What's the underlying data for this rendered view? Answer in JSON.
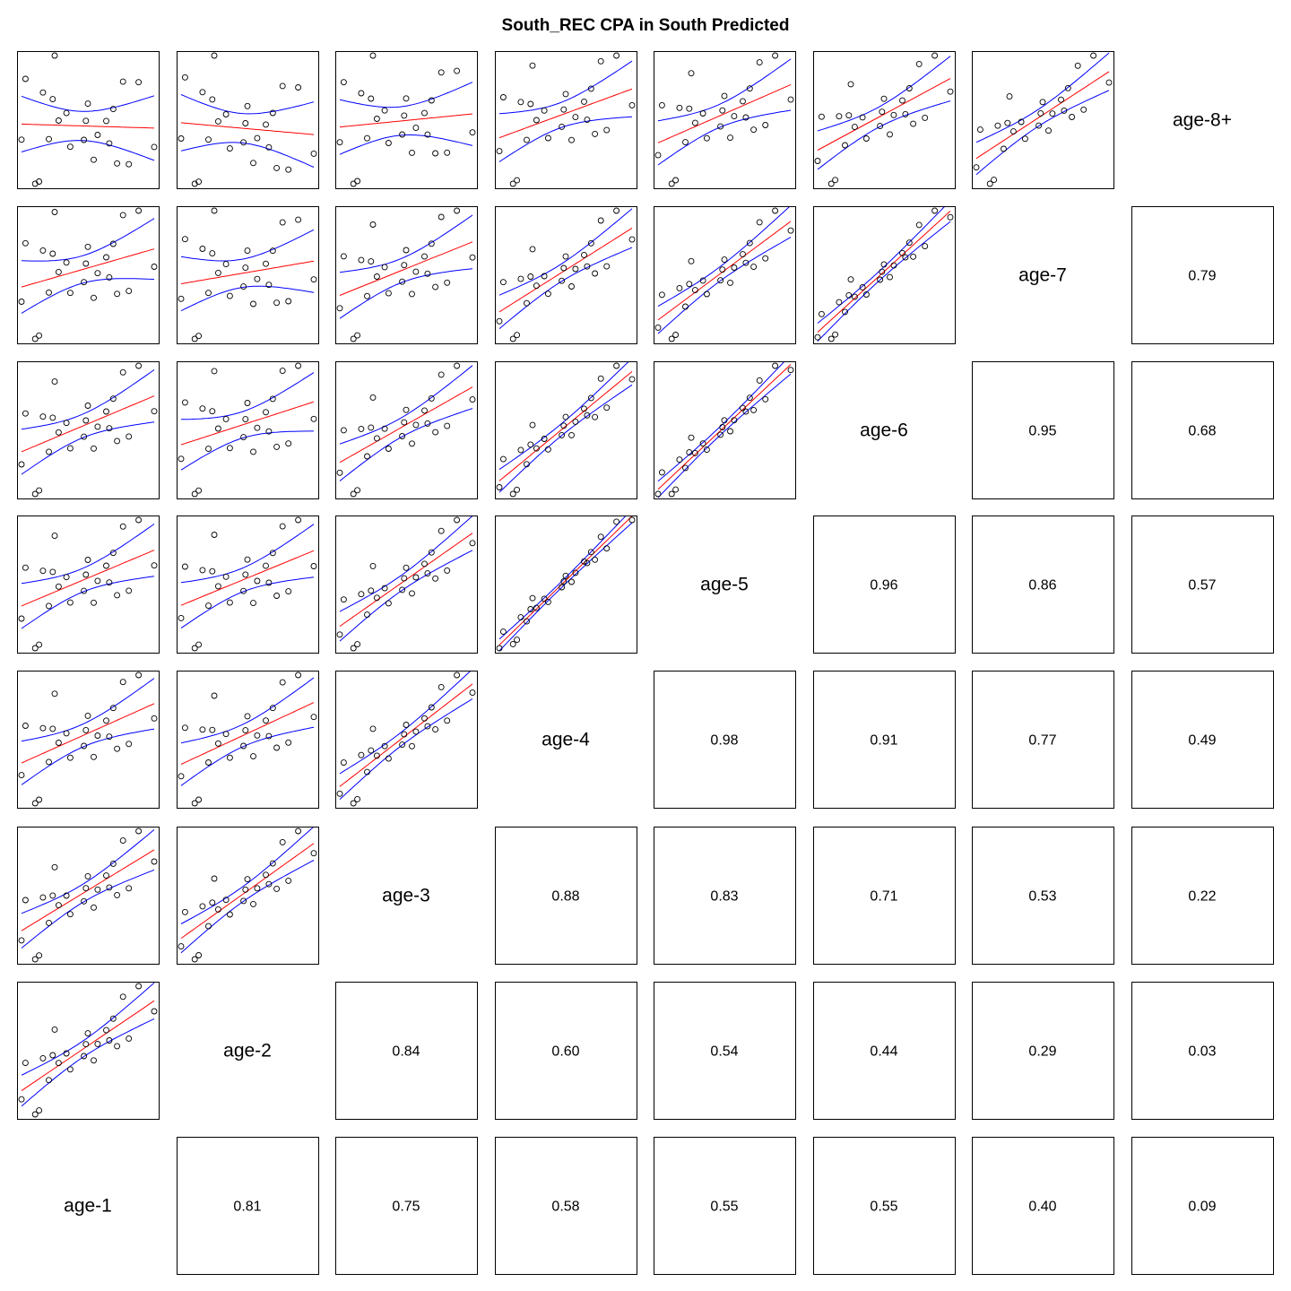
{
  "chart_data": {
    "type": "scatter",
    "title": "South_REC CPA in South Predicted",
    "layout": "pairs-matrix",
    "variables": [
      "age-1",
      "age-2",
      "age-3",
      "age-4",
      "age-5",
      "age-6",
      "age-7",
      "age-8+"
    ],
    "colors": {
      "points": "#000000",
      "fit": "#ff0000",
      "ci": "#0000ff",
      "frame": "#000000"
    },
    "correlations": [
      {
        "row": "age-1",
        "col": "age-2",
        "value": "0.81"
      },
      {
        "row": "age-1",
        "col": "age-3",
        "value": "0.75"
      },
      {
        "row": "age-1",
        "col": "age-4",
        "value": "0.58"
      },
      {
        "row": "age-1",
        "col": "age-5",
        "value": "0.55"
      },
      {
        "row": "age-1",
        "col": "age-6",
        "value": "0.55"
      },
      {
        "row": "age-1",
        "col": "age-7",
        "value": "0.40"
      },
      {
        "row": "age-1",
        "col": "age-8+",
        "value": "0.09"
      },
      {
        "row": "age-2",
        "col": "age-3",
        "value": "0.84"
      },
      {
        "row": "age-2",
        "col": "age-4",
        "value": "0.60"
      },
      {
        "row": "age-2",
        "col": "age-5",
        "value": "0.54"
      },
      {
        "row": "age-2",
        "col": "age-6",
        "value": "0.44"
      },
      {
        "row": "age-2",
        "col": "age-7",
        "value": "0.29"
      },
      {
        "row": "age-2",
        "col": "age-8+",
        "value": "0.03"
      },
      {
        "row": "age-3",
        "col": "age-4",
        "value": "0.88"
      },
      {
        "row": "age-3",
        "col": "age-5",
        "value": "0.83"
      },
      {
        "row": "age-3",
        "col": "age-6",
        "value": "0.71"
      },
      {
        "row": "age-3",
        "col": "age-7",
        "value": "0.53"
      },
      {
        "row": "age-3",
        "col": "age-8+",
        "value": "0.22"
      },
      {
        "row": "age-4",
        "col": "age-5",
        "value": "0.98"
      },
      {
        "row": "age-4",
        "col": "age-6",
        "value": "0.91"
      },
      {
        "row": "age-4",
        "col": "age-7",
        "value": "0.77"
      },
      {
        "row": "age-4",
        "col": "age-8+",
        "value": "0.49"
      },
      {
        "row": "age-5",
        "col": "age-6",
        "value": "0.96"
      },
      {
        "row": "age-5",
        "col": "age-7",
        "value": "0.86"
      },
      {
        "row": "age-5",
        "col": "age-8+",
        "value": "0.57"
      },
      {
        "row": "age-6",
        "col": "age-7",
        "value": "0.95"
      },
      {
        "row": "age-6",
        "col": "age-8+",
        "value": "0.68"
      },
      {
        "row": "age-7",
        "col": "age-8+",
        "value": "0.79"
      }
    ],
    "x": [
      -0.9,
      -0.1,
      0.82,
      -0.4,
      0.25,
      -0.65,
      1.4,
      0.3,
      1.0,
      -1.25,
      0.6,
      -0.8,
      1.25,
      2.05,
      -0.5,
      0.35,
      0.9,
      -1.35,
      1.65,
      -1.0,
      0.5,
      -0.2,
      -0.55,
      1.1
    ],
    "z": [
      -1.45,
      -0.6,
      0.0,
      0.12,
      -0.45,
      -0.35,
      -1.2,
      0.05,
      0.3,
      1.3,
      -0.35,
      0.9,
      1.0,
      -0.8,
      1.85,
      0.5,
      -0.6,
      -0.3,
      0.95,
      -1.5,
      -1.0,
      0.3,
      0.7,
      -1.15
    ]
  }
}
